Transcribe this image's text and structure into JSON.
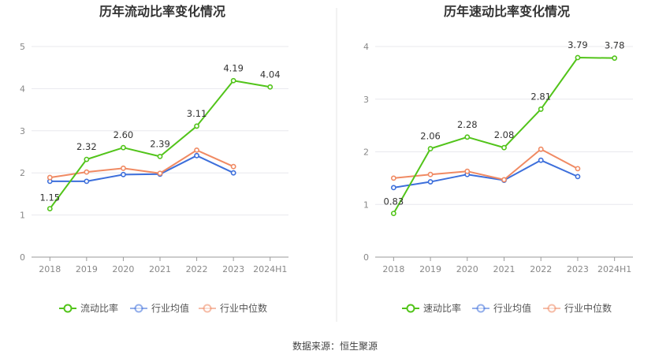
{
  "source": "数据来源：恒生聚源",
  "chart_data": [
    {
      "type": "line",
      "title": "历年流动比率变化情况",
      "categories": [
        "2018",
        "2019",
        "2020",
        "2021",
        "2022",
        "2023",
        "2024H1"
      ],
      "ylim": [
        0,
        5
      ],
      "yticks": [
        "0",
        "1",
        "2",
        "3",
        "4",
        "5"
      ],
      "grid": true,
      "legend_position": "bottom",
      "series": [
        {
          "name": "流动比率",
          "color": "#52c41a",
          "values": [
            1.15,
            2.32,
            2.6,
            2.39,
            3.11,
            4.19,
            4.04
          ],
          "labels": [
            "1.15",
            "2.32",
            "2.60",
            "2.39",
            "3.11",
            "4.19",
            "4.04"
          ]
        },
        {
          "name": "行业均值",
          "color": "#3d6fdb",
          "values": [
            1.8,
            1.8,
            1.96,
            1.97,
            2.41,
            2.0,
            null
          ]
        },
        {
          "name": "行业中位数",
          "color": "#f08a63",
          "values": [
            1.89,
            2.02,
            2.11,
            1.99,
            2.54,
            2.15,
            null
          ]
        }
      ]
    },
    {
      "type": "line",
      "title": "历年速动比率变化情况",
      "categories": [
        "2018",
        "2019",
        "2020",
        "2021",
        "2022",
        "2023",
        "2024H1"
      ],
      "ylim": [
        0,
        4
      ],
      "yticks": [
        "0",
        "1",
        "2",
        "3",
        "4"
      ],
      "grid": true,
      "legend_position": "bottom",
      "series": [
        {
          "name": "速动比率",
          "color": "#52c41a",
          "values": [
            0.83,
            2.06,
            2.28,
            2.08,
            2.81,
            3.79,
            3.78
          ],
          "labels": [
            "0.83",
            "2.06",
            "2.28",
            "2.08",
            "2.81",
            "3.79",
            "3.78"
          ]
        },
        {
          "name": "行业均值",
          "color": "#3d6fdb",
          "values": [
            1.32,
            1.43,
            1.57,
            1.46,
            1.84,
            1.53,
            null
          ]
        },
        {
          "name": "行业中位数",
          "color": "#f08a63",
          "values": [
            1.5,
            1.57,
            1.63,
            1.47,
            2.05,
            1.68,
            null
          ]
        }
      ]
    }
  ]
}
